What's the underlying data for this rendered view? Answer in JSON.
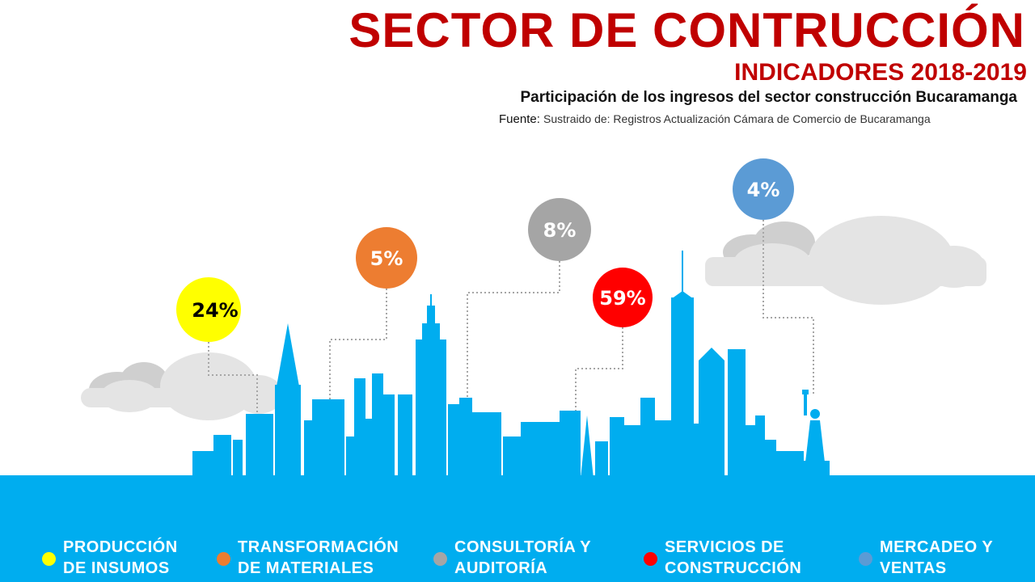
{
  "header": {
    "title": "SECTOR DE CONTRUCCIÓN",
    "subtitle": "INDICADORES 2018-2019",
    "caption": "Participación de los ingresos del sector construcción Bucaramanga",
    "source_label": "Fuente:",
    "source_text": "Sustraido de: Registros Actualización Cámara de Comercio de Bucaramanga"
  },
  "colors": {
    "title": "#c00000",
    "skyline": "#00adef",
    "cloud": "#e4e4e4",
    "cloud_dark": "#cfcfcf",
    "connector": "#a6a6a6"
  },
  "chart_data": {
    "type": "bubble-infographic",
    "unit": "%",
    "categories": [
      "PRODUCCIÓN DE INSUMOS",
      "TRANSFORMACIÓN DE MATERIALES",
      "CONSULTORÍA Y AUDITORÍA",
      "SERVICIOS DE CONSTRUCCIÓN",
      "MERCADEO Y VENTAS"
    ],
    "values": [
      24,
      5,
      8,
      59,
      4
    ],
    "labels": [
      "24%",
      "5%",
      "8%",
      "59%",
      "4%"
    ],
    "colors": [
      "#ffff00",
      "#ed7d31",
      "#a5a5a5",
      "#ff0000",
      "#5b9bd5"
    ],
    "label_colors": [
      "#000000",
      "#ffffff",
      "#ffffff",
      "#ffffff",
      "#ffffff"
    ]
  },
  "legend": {
    "items": [
      {
        "line1": "PRODUCCIÓN",
        "line2": "DE INSUMOS",
        "color": "#ffff00"
      },
      {
        "line1": "TRANSFORMACIÓN",
        "line2": "DE MATERIALES",
        "color": "#ed7d31"
      },
      {
        "line1": "CONSULTORÍA Y",
        "line2": "AUDITORÍA",
        "color": "#a5a5a5"
      },
      {
        "line1": "SERVICIOS DE",
        "line2": "CONSTRUCCIÓN",
        "color": "#ff0000"
      },
      {
        "line1": "MERCADEO Y",
        "line2": "VENTAS",
        "color": "#5b9bd5"
      }
    ]
  }
}
